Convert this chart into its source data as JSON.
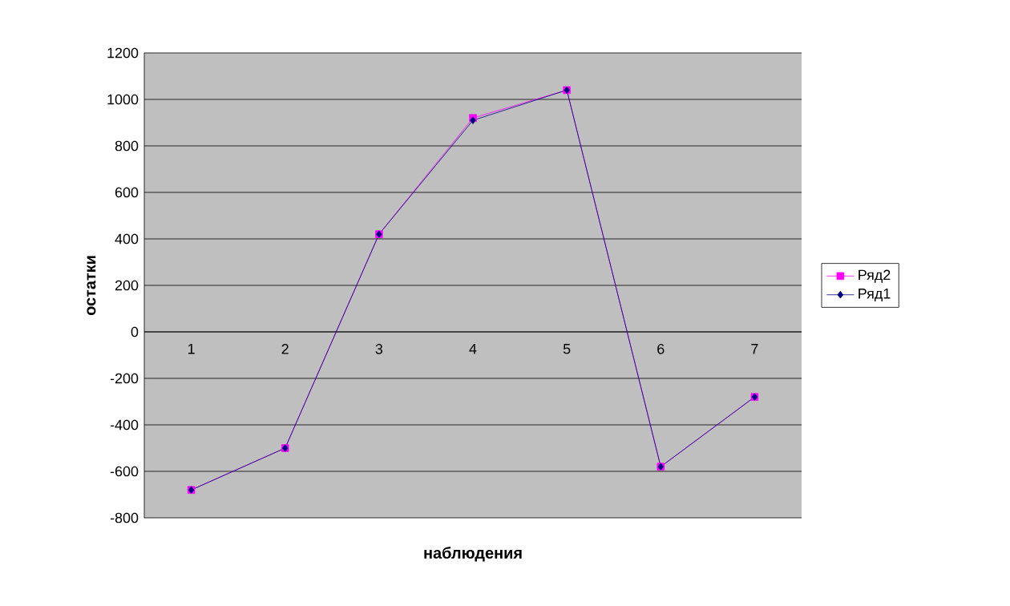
{
  "chart_data": {
    "type": "line",
    "xlabel": "наблюдения",
    "ylabel": "остатки",
    "categories": [
      "1",
      "2",
      "3",
      "4",
      "5",
      "6",
      "7"
    ],
    "series": [
      {
        "name": "Ряд2",
        "color": "#ff00ff",
        "marker": "square",
        "values": [
          -680,
          -500,
          420,
          920,
          1040,
          -580,
          -280
        ]
      },
      {
        "name": "Ряд1",
        "color": "#000080",
        "marker": "diamond",
        "values": [
          -680,
          -500,
          420,
          910,
          1040,
          -580,
          -280
        ]
      }
    ],
    "ylim": [
      -800,
      1200
    ],
    "yticks": [
      -800,
      -600,
      -400,
      -200,
      0,
      200,
      400,
      600,
      800,
      1000,
      1200
    ],
    "grid": "y",
    "legend": "right"
  }
}
